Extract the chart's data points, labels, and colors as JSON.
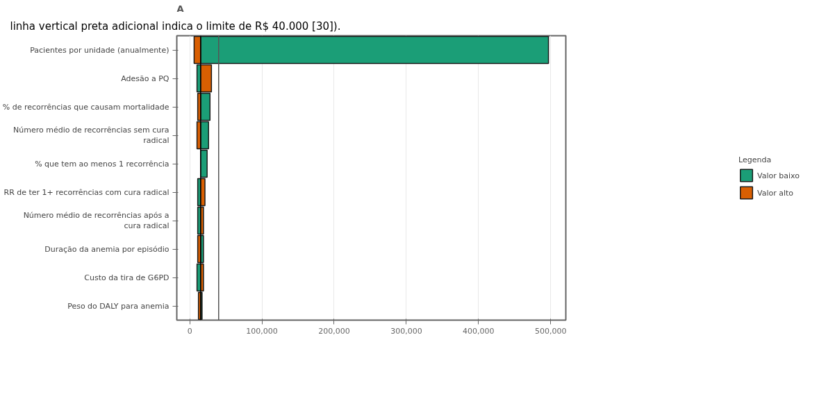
{
  "chart_data": {
    "type": "bar",
    "orientation": "horizontal",
    "title": "A",
    "categories": [
      "Pacientes por unidade (anualmente)",
      "Adesão a PQ",
      "% de recorrências que causam mortalidade",
      "Número médio de recorrências sem cura radical",
      "% que tem ao menos 1 recorrência",
      "RR de ter 1+ recorrências com cura radical",
      "Número médio de recorrências após a cura radical",
      "Duração da anemia por episódio",
      "Custo da tira de G6PD",
      "Peso do DALY para anemia"
    ],
    "series": [
      {
        "name": "Valor baixo",
        "color": "#1b9e77",
        "base": [
          15000,
          15000,
          15000,
          15000,
          15000,
          15000,
          15000,
          15000,
          15000,
          15000
        ],
        "values": [
          482000,
          -5000,
          13000,
          11000,
          9000,
          -4000,
          -4000,
          4000,
          -5000,
          2000
        ]
      },
      {
        "name": "Valor alto",
        "color": "#d95f02",
        "base": [
          15000,
          15000,
          15000,
          15000,
          null,
          15000,
          15000,
          15000,
          15000,
          15000
        ],
        "values": [
          -9000,
          15000,
          -4000,
          -5000,
          null,
          6000,
          4000,
          -4000,
          4000,
          -3000
        ]
      }
    ],
    "xlim": [
      -18000,
      521000
    ],
    "xticks": [
      0,
      {
        "value": 100000,
        "label": "100,000"
      },
      {
        "value": 200000,
        "label": "200,000"
      },
      {
        "value": 300000,
        "label": "300,000"
      },
      {
        "value": 400000,
        "label": "400,000"
      },
      {
        "value": 500000,
        "label": "500,000"
      }
    ],
    "ref_lines": [
      {
        "axis": "x",
        "value": 15000,
        "color": "#000000"
      },
      {
        "axis": "x",
        "value": 40000,
        "color": "#555555"
      }
    ],
    "legend_title": "Legenda",
    "legend": "right",
    "grid": "x",
    "annotations": [
      "linha vertical preta adicional indica o limite de R$ 40.000 [30])."
    ]
  }
}
